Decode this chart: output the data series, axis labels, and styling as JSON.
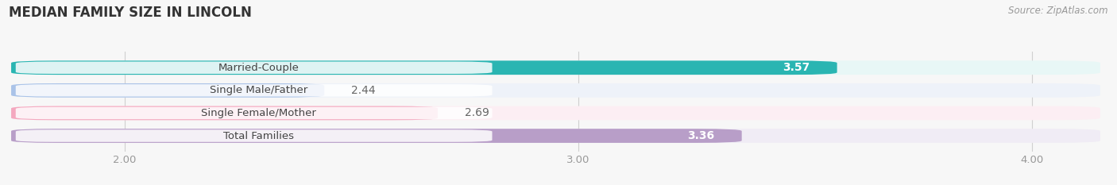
{
  "title": "MEDIAN FAMILY SIZE IN LINCOLN",
  "source": "Source: ZipAtlas.com",
  "categories": [
    "Married-Couple",
    "Single Male/Father",
    "Single Female/Mother",
    "Total Families"
  ],
  "values": [
    3.57,
    2.44,
    2.69,
    3.36
  ],
  "bar_colors": [
    "#2ab5b2",
    "#aac3e8",
    "#f4a8bf",
    "#b89ec8"
  ],
  "bar_bg_colors": [
    "#e8f7f6",
    "#eef2f9",
    "#fceef3",
    "#f0ecf5"
  ],
  "label_inside": [
    true,
    false,
    false,
    true
  ],
  "value_label_color_inside": [
    "#ffffff",
    "#777777",
    "#777777",
    "#ffffff"
  ],
  "xlim_min": 1.75,
  "xlim_max": 4.15,
  "xticks": [
    2.0,
    3.0,
    4.0
  ],
  "background_color": "#f7f7f7",
  "bar_height": 0.62,
  "bar_gap": 0.38,
  "title_fontsize": 12,
  "cat_label_fontsize": 9.5,
  "val_label_fontsize": 10,
  "tick_fontsize": 9.5,
  "source_fontsize": 8.5
}
